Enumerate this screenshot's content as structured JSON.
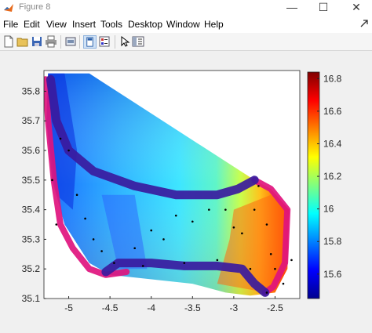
{
  "window": {
    "title": "Figure 8",
    "minimize": "—",
    "maximize": "☐",
    "close": "✕"
  },
  "menu": [
    {
      "label": "File"
    },
    {
      "label": "Edit"
    },
    {
      "label": "View"
    },
    {
      "label": "Insert"
    },
    {
      "label": "Tools"
    },
    {
      "label": "Desktop"
    },
    {
      "label": "Window"
    },
    {
      "label": "Help"
    }
  ],
  "toolbar": {
    "icons": [
      "new-figure-icon",
      "open-file-icon",
      "save-icon",
      "print-icon",
      "link-icon",
      "dock-icon",
      "colorbar-icon",
      "pointer-icon",
      "property-editor-icon"
    ]
  },
  "chart_data": {
    "type": "heatmap",
    "title": "",
    "xlabel": "",
    "ylabel": "",
    "xlim": [
      -5.3,
      -2.2
    ],
    "ylim": [
      35.1,
      35.87
    ],
    "x_ticks": [
      "-5",
      "-4.5",
      "-4",
      "-3.5",
      "-3",
      "-2.5"
    ],
    "x_tick_values": [
      -5,
      -4.5,
      -4,
      -3.5,
      -3,
      -2.5
    ],
    "y_ticks": [
      "35.1",
      "35.2",
      "35.3",
      "35.4",
      "35.5",
      "35.6",
      "35.7",
      "35.8"
    ],
    "y_tick_values": [
      35.1,
      35.2,
      35.3,
      35.4,
      35.5,
      35.6,
      35.7,
      35.8
    ],
    "colorbar": {
      "ticks": [
        "15.6",
        "15.8",
        "16",
        "16.2",
        "16.4",
        "16.6",
        "16.8"
      ],
      "tick_values": [
        15.6,
        15.8,
        16.0,
        16.2,
        16.4,
        16.6,
        16.8
      ],
      "range": [
        15.45,
        16.84
      ],
      "colormap": "jet"
    },
    "station_points": [
      [
        -5.1,
        35.64
      ],
      [
        -5.0,
        35.6
      ],
      [
        -4.9,
        35.45
      ],
      [
        -4.8,
        35.37
      ],
      [
        -4.7,
        35.3
      ],
      [
        -4.6,
        35.26
      ],
      [
        -4.45,
        35.22
      ],
      [
        -4.2,
        35.27
      ],
      [
        -4.0,
        35.33
      ],
      [
        -3.85,
        35.3
      ],
      [
        -3.7,
        35.38
      ],
      [
        -3.5,
        35.36
      ],
      [
        -3.3,
        35.4
      ],
      [
        -3.1,
        35.4
      ],
      [
        -3.0,
        35.34
      ],
      [
        -2.9,
        35.32
      ],
      [
        -2.75,
        35.4
      ],
      [
        -2.6,
        35.35
      ],
      [
        -2.55,
        35.25
      ],
      [
        -2.5,
        35.2
      ],
      [
        -2.4,
        35.15
      ],
      [
        -2.8,
        35.2
      ],
      [
        -3.2,
        35.23
      ],
      [
        -3.6,
        35.22
      ],
      [
        -4.1,
        35.21
      ],
      [
        -2.6,
        35.12
      ],
      [
        -2.7,
        35.48
      ],
      [
        -5.2,
        35.5
      ],
      [
        -5.15,
        35.35
      ],
      [
        -2.3,
        35.23
      ]
    ],
    "tracks": [
      {
        "name": "",
        "color": "#e0137e"
      },
      {
        "name": "",
        "color": "#3a1a9e"
      }
    ]
  }
}
